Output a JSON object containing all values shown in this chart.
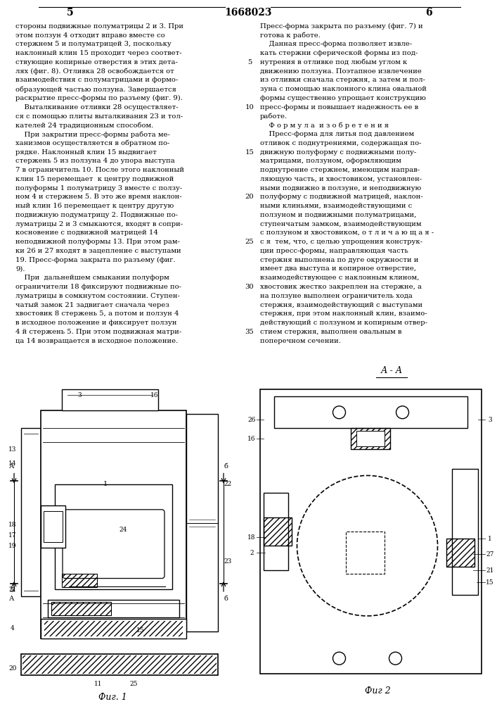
{
  "page_number_left": "5",
  "patent_number": "1668023",
  "page_number_right": "6",
  "background_color": "#ffffff",
  "text_color": "#000000",
  "left_column_text": [
    "стороны подвижные полуматрицы 2 и 3. При",
    "этом ползун 4 отходит вправо вместе со",
    "стержнем 5 и полуматрицей 3, поскольку",
    "наклонный клин 15 проходит через соответ-",
    "ствующие копирные отверстия в этих дета-",
    "лях (фиг. 8). Отливка 28 освобождается от",
    "взаимодействия с полуматрицами и формо-",
    "образующей частью ползуна. Завершается",
    "раскрытие пресс-формы по разъему (фиг. 9).",
    "    Выталкивание отливки 28 осуществляет-",
    "ся с помощью плиты выталкивания 23 и тол-",
    "кателей 24 традиционным способом.",
    "    При закрытии пресс-формы работа ме-",
    "ханизмов осуществляется в обратном по-",
    "рядке. Наклонный клин 15 выдвигает",
    "стержень 5 из ползуна 4 до упора выступа",
    "7 в ограничитель 10. После этого наклонный",
    "клин 15 перемещает  к центру подвижной",
    "полуформы 1 полуматрицу 3 вместе с ползу-",
    "ном 4 и стержнем 5. В это же время наклон-",
    "ный клин 16 перемещает к центру другую",
    "подвижную подуматрицу 2. Подвижные по-",
    "луматрицы 2 и 3 смыкаются, входят в сопри-",
    "косновение с подвижной матрицей 14",
    "неподвижной полуформы 13. При этом рам-",
    "ки 26 и 27 входят в зацепление с выступами",
    "19. Пресс-форма закрыта по разъему (фиг.",
    "9).",
    "    При  дальнейшем смыкании полуформ",
    "ограничители 18 фиксируют подвижные по-",
    "луматрицы в сомкнутом состоянии. Ступен-",
    "чатый замок 21 задвигает сначала через",
    "хвостовик 8 стержень 5, а потом и ползун 4",
    "в исходное положение и фиксирует ползун",
    "4 й стержень 5. При этом подвижная матри-",
    "ца 14 возвращается в исходное положение."
  ],
  "right_column_text": [
    "Пресс-форма закрыта по разъему (фиг. 7) и",
    "готова к работе.",
    "    Данная пресс-форма позволяет извле-",
    "кать стержни сферической формы из под-",
    "нутрения в отливке под любым углом к",
    "движению ползуна. Поэтапное извлечение",
    "из отливки сначала стержня, а затем и пол-",
    "зуна с помощью наклонного клина овальной",
    "формы существенно упрощает конструкцию",
    "пресс-формы и повышает надежность ее в",
    "работе.",
    "    Ф о р м у л а  и з о б р е т е н и я",
    "    Пресс-форма для литья под давлением",
    "отливок с поднутрениями, содержащая по-",
    "движную полуформу с подвижными полу-",
    "матрицами, ползуном, оформляющим",
    "поднутрение стержнем, имеющим направ-",
    "ляющую часть, и хвостовиком, установлен-",
    "ными подвижно в ползуне, и неподвижную",
    "полуформу с подвижной матрицей, наклон-",
    "ными клиньями, взаимодействующими с",
    "ползуном и подвижными полуматрицами,",
    "ступенчатым замком, взаимодействующим",
    "с ползуном и хвостовиком, о т л и ч а ю щ а я -",
    "с я  тем, что, с целью упрощения конструк-",
    "ции пресс-формы, направляющая часть",
    "стержня выполнена по дуге окружности и",
    "имеет два выступа и копирное отверстие,",
    "взаимодействующее с наклонным клином,",
    "хвостовик жестко закреплен на стержне, а",
    "на ползуне выполнен ограничитель хода",
    "стержня, взаимодействующий с выступами",
    "стержня, при этом наклонный клин, взаимо-",
    "действующий с ползуном и копирным отвер-",
    "стием стержня, выполнен овальным в",
    "поперечном сечении."
  ],
  "line_numbers": [
    5,
    10,
    15,
    20,
    25,
    30,
    35
  ],
  "line_number_row_indices": [
    4,
    9,
    14,
    19,
    24,
    29,
    34
  ],
  "fig1_caption": "Фиг. 1",
  "fig2_caption": "Фиг 2",
  "section_label": "А - А"
}
